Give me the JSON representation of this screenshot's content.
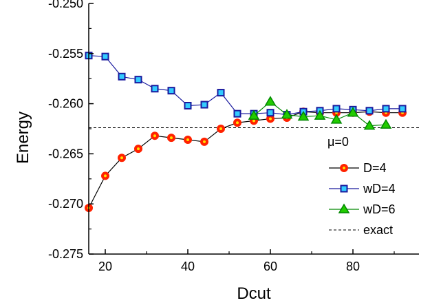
{
  "chart_data": {
    "type": "line",
    "xlabel": "Dcut",
    "ylabel": "Energy",
    "xlim": [
      16,
      96
    ],
    "ylim": [
      -0.275,
      -0.25
    ],
    "xticks": [
      20,
      40,
      60,
      80
    ],
    "xtick_labels": [
      "20",
      "40",
      "60",
      "80"
    ],
    "yticks": [
      -0.275,
      -0.27,
      -0.265,
      -0.26,
      -0.255,
      -0.25
    ],
    "ytick_labels": [
      "-0.275",
      "-0.270",
      "-0.265",
      "-0.260",
      "-0.255",
      "-0.250"
    ],
    "grid": false,
    "legend_title": "μ=0",
    "legend_position": "lower-right",
    "series": [
      {
        "name": "D=4",
        "marker": "circle",
        "line_color": "#000000",
        "marker_fill": "#ff2200",
        "marker_inner": "#ffe000",
        "x": [
          16,
          20,
          24,
          28,
          32,
          36,
          40,
          44,
          48,
          52,
          56,
          60,
          64,
          68,
          72,
          76,
          80,
          84,
          88,
          92
        ],
        "y": [
          -0.2704,
          -0.2672,
          -0.2654,
          -0.2645,
          -0.2632,
          -0.2634,
          -0.2636,
          -0.2638,
          -0.2625,
          -0.2619,
          -0.2617,
          -0.2615,
          -0.2614,
          -0.2608,
          -0.2609,
          -0.2609,
          -0.2609,
          -0.2608,
          -0.2609,
          -0.2609
        ]
      },
      {
        "name": "wD=4",
        "marker": "square",
        "line_color": "#1a1a9e",
        "marker_fill": "#1a1a9e",
        "marker_inner": "#33ccff",
        "x": [
          16,
          20,
          24,
          28,
          32,
          36,
          40,
          44,
          48,
          52,
          56,
          60,
          64,
          68,
          72,
          76,
          80,
          84,
          88,
          92
        ],
        "y": [
          -0.2552,
          -0.2553,
          -0.2573,
          -0.2576,
          -0.2585,
          -0.2587,
          -0.2602,
          -0.2601,
          -0.2589,
          -0.261,
          -0.261,
          -0.2609,
          -0.2611,
          -0.2608,
          -0.2607,
          -0.2605,
          -0.2606,
          -0.2607,
          -0.2605,
          -0.2605
        ]
      },
      {
        "name": "wD=6",
        "marker": "triangle",
        "line_color": "#008800",
        "marker_fill": "#008800",
        "marker_inner": "#22cc00",
        "x": [
          56,
          60,
          64,
          68,
          72,
          76,
          80,
          84,
          88
        ],
        "y": [
          -0.2612,
          -0.2598,
          -0.2611,
          -0.2613,
          -0.2612,
          -0.2616,
          -0.2609,
          -0.2622,
          -0.2621
        ]
      }
    ],
    "reference_lines": [
      {
        "name": "exact",
        "y": -0.2624,
        "style": "dashed",
        "color": "#000000"
      }
    ]
  }
}
